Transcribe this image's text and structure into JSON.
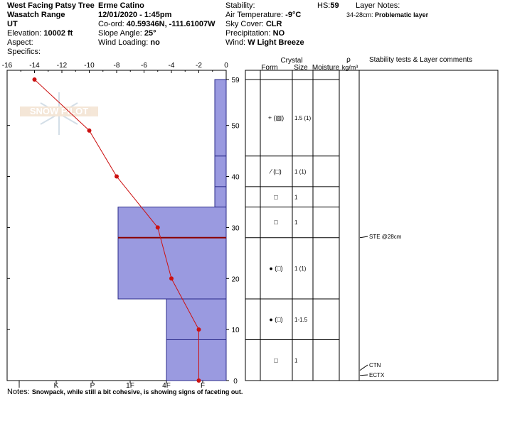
{
  "header": {
    "location": "West Facing Patsy Tree",
    "range": "Wasatch Range",
    "state": "UT",
    "elevation_label": "Elevation:",
    "elevation_value": "10002 ft",
    "aspect_label": "Aspect:",
    "aspect_value": "",
    "specifics_label": "Specifics:",
    "specifics_value": "",
    "observer": "Erme Catino",
    "datetime": "12/01/2020 - 1:45pm",
    "coord_label": "Co-ord:",
    "coord_value": "40.59346N, -111.61007W",
    "slope_label": "Slope Angle:",
    "slope_value": "25°",
    "wind_loading_label": "Wind Loading:",
    "wind_loading_value": "no",
    "stability_label": "Stability:",
    "stability_value": "",
    "air_temp_label": "Air Temperature:",
    "air_temp_value": "-9°C",
    "sky_label": "Sky Cover:",
    "sky_value": "CLR",
    "precip_label": "Precipitation:",
    "precip_value": "NO",
    "wind_label": "Wind:",
    "wind_value": "W Light Breeze",
    "hs_label": "HS:",
    "hs_value": "59",
    "layer_notes_label": "Layer Notes:",
    "layer_notes_depth": "34-28cm:",
    "layer_notes_text": "Problematic layer"
  },
  "watermark": "SNOW PILOT",
  "table_headers": {
    "crystal": "Crystal",
    "form": "Form",
    "size": "Size",
    "moisture": "Moisture",
    "rho": "ρ",
    "density_unit": "kg/m³",
    "comments": "Stability tests & Layer comments"
  },
  "layers": [
    {
      "form": "+ (▨)",
      "size": "1.5 (1)"
    },
    {
      "form": "⁄ (□)",
      "size": "1 (1)"
    },
    {
      "form": "□",
      "size": "1"
    },
    {
      "form": "□",
      "size": "1"
    },
    {
      "form": "● (□)",
      "size": "1 (1)"
    },
    {
      "form": "● (□)",
      "size": "1-1.5"
    },
    {
      "form": "□",
      "size": "1"
    }
  ],
  "stability_tests": [
    {
      "depth": 28,
      "text": "STE @28cm"
    },
    {
      "depth": 2,
      "text": "CTN"
    },
    {
      "depth": 1,
      "text": "ECTX"
    }
  ],
  "notes_label": "Notes:",
  "notes_text": "Snowpack, while still a bit cohesive, is showing signs of faceting out.",
  "chart_data": {
    "type": "snow-profile",
    "temperature_axis": {
      "ticks": [
        -16,
        -14,
        -12,
        -10,
        -8,
        -6,
        -4,
        -2,
        0
      ],
      "range": [
        -16,
        0
      ],
      "unit": "°C"
    },
    "depth_axis": {
      "ticks": [
        0,
        10,
        20,
        30,
        40,
        50,
        59
      ],
      "range": [
        0,
        59
      ],
      "unit": "cm"
    },
    "hardness_axis": {
      "ticks": [
        "I",
        "K",
        "P",
        "1F",
        "4F",
        "F"
      ]
    },
    "temperature_profile": [
      {
        "depth": 59,
        "temp": -14
      },
      {
        "depth": 49,
        "temp": -10
      },
      {
        "depth": 40,
        "temp": -8
      },
      {
        "depth": 30,
        "temp": -5
      },
      {
        "depth": 20,
        "temp": -4
      },
      {
        "depth": 10,
        "temp": -2
      },
      {
        "depth": 0,
        "temp": -2
      }
    ],
    "hardness_layers": [
      {
        "top": 59,
        "bottom": 44,
        "hardness": "F+"
      },
      {
        "top": 44,
        "bottom": 38,
        "hardness": "F+"
      },
      {
        "top": 38,
        "bottom": 34,
        "hardness": "F+"
      },
      {
        "top": 34,
        "bottom": 28,
        "hardness": "1F-"
      },
      {
        "top": 28,
        "bottom": 16,
        "hardness": "1F-"
      },
      {
        "top": 16,
        "bottom": 8,
        "hardness": "4F"
      },
      {
        "top": 8,
        "bottom": 0,
        "hardness": "4F"
      }
    ],
    "problem_layer_depth": 28,
    "layer_rows": [
      {
        "top": 59,
        "bottom": 44
      },
      {
        "top": 44,
        "bottom": 38
      },
      {
        "top": 38,
        "bottom": 34
      },
      {
        "top": 34,
        "bottom": 28
      },
      {
        "top": 28,
        "bottom": 16
      },
      {
        "top": 16,
        "bottom": 8
      },
      {
        "top": 8,
        "bottom": 0
      }
    ],
    "colors": {
      "hardness_fill": "#9a9ae0",
      "hardness_stroke": "#2b2b8a",
      "temperature": "#cc1111",
      "problem_line": "#8b0000"
    }
  }
}
